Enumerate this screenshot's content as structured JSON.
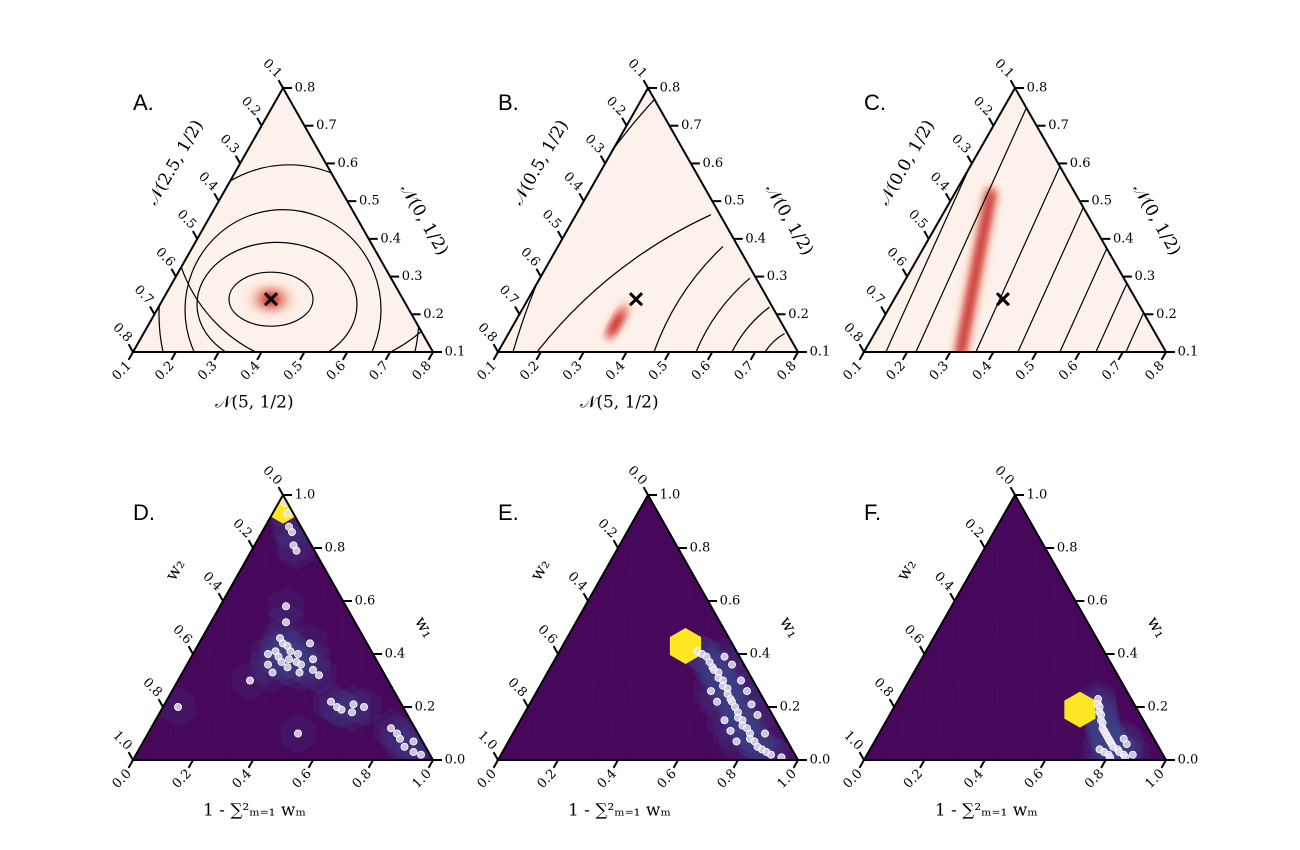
{
  "chart_data": [
    {
      "panel": "A.",
      "type": "heatmap",
      "subtype": "ternary-density",
      "grid": false,
      "axes": {
        "bottom": {
          "label": "𝒩(5, 1/2)",
          "ticks": [
            "0.1",
            "0.2",
            "0.3",
            "0.4",
            "0.5",
            "0.6",
            "0.7",
            "0.8"
          ]
        },
        "left": {
          "label": "𝒩(2.5, 1/2)",
          "ticks": [
            "0.1",
            "0.2",
            "0.3",
            "0.4",
            "0.5",
            "0.6",
            "0.7",
            "0.8"
          ]
        },
        "right": {
          "label": "𝒩(0, 1/2)",
          "ticks": [
            "0.1",
            "0.2",
            "0.3",
            "0.4",
            "0.5",
            "0.6",
            "0.7",
            "0.8"
          ]
        }
      },
      "marker": {
        "symbol": "×",
        "bottom": 0.36,
        "left": 0.44,
        "right": 0.2
      },
      "density_center": {
        "bottom": 0.36,
        "left": 0.44,
        "right": 0.2
      },
      "density_shape": "compact-blob",
      "contour_levels": 5
    },
    {
      "panel": "B.",
      "type": "heatmap",
      "subtype": "ternary-density",
      "grid": false,
      "axes": {
        "bottom": {
          "label": "𝒩(5, 1/2)",
          "ticks": [
            "0.1",
            "0.2",
            "0.3",
            "0.4",
            "0.5",
            "0.6",
            "0.7",
            "0.8"
          ]
        },
        "left": {
          "label": "𝒩(0.5, 1/2)",
          "ticks": [
            "0.1",
            "0.2",
            "0.3",
            "0.4",
            "0.5",
            "0.6",
            "0.7",
            "0.8"
          ]
        },
        "right": {
          "label": "𝒩(0, 1/2)",
          "ticks": [
            "0.1",
            "0.2",
            "0.3",
            "0.4",
            "0.5",
            "0.6",
            "0.7",
            "0.8"
          ]
        }
      },
      "marker": {
        "symbol": "×",
        "bottom": 0.36,
        "left": 0.44,
        "right": 0.2
      },
      "density_center": {
        "bottom": 0.34,
        "left": 0.54,
        "right": 0.12
      },
      "density_shape": "short-ridge",
      "contour_levels": 6
    },
    {
      "panel": "C.",
      "type": "heatmap",
      "subtype": "ternary-density",
      "grid": false,
      "axes": {
        "bottom": {
          "label": "",
          "ticks": [
            "0.1",
            "0.2",
            "0.3",
            "0.4",
            "0.5",
            "0.6",
            "0.7",
            "0.8"
          ]
        },
        "left": {
          "label": "𝒩(0.0, 1/2)",
          "ticks": [
            "0.1",
            "0.2",
            "0.3",
            "0.4",
            "0.5",
            "0.6",
            "0.7",
            "0.8"
          ]
        },
        "right": {
          "label": "𝒩(0, 1/2)",
          "ticks": [
            "0.1",
            "0.2",
            "0.3",
            "0.4",
            "0.5",
            "0.6",
            "0.7",
            "0.8"
          ]
        }
      },
      "marker": {
        "symbol": "×",
        "bottom": 0.36,
        "left": 0.44,
        "right": 0.2
      },
      "density_shape": "long-ridge",
      "ridge_from": {
        "bottom": 0.32,
        "left": 0.68,
        "right": 0.0
      },
      "ridge_to": {
        "bottom": 0.12,
        "left": 0.28,
        "right": 0.6
      },
      "contour_levels": 8
    },
    {
      "panel": "D.",
      "type": "scatter",
      "subtype": "ternary-hexbin",
      "grid": false,
      "background_color": "#440154",
      "highlight_color": "#fde725",
      "axes": {
        "bottom": {
          "label": "1 - ∑²ₘ₌₁ wₘ",
          "ticks": [
            "0.0",
            "0.2",
            "0.4",
            "0.6",
            "0.8",
            "1.0"
          ]
        },
        "left": {
          "label": "w₂",
          "ticks": [
            "0.0",
            "0.2",
            "0.4",
            "0.6",
            "0.8",
            "1.0"
          ]
        },
        "right": {
          "label": "w₁",
          "ticks": [
            "0.0",
            "0.2",
            "0.4",
            "0.6",
            "0.8",
            "1.0"
          ]
        }
      },
      "hexbin_highlights": [
        {
          "bottom": 0.02,
          "right": 0.96,
          "level": 1.0
        }
      ],
      "points": [
        {
          "bottom": 0.02,
          "right": 0.97
        },
        {
          "bottom": 0.05,
          "right": 0.93
        },
        {
          "bottom": 0.08,
          "right": 0.88
        },
        {
          "bottom": 0.1,
          "right": 0.86
        },
        {
          "bottom": 0.13,
          "right": 0.81
        },
        {
          "bottom": 0.15,
          "right": 0.79
        },
        {
          "bottom": 0.22,
          "right": 0.58
        },
        {
          "bottom": 0.25,
          "right": 0.52
        },
        {
          "bottom": 0.26,
          "right": 0.46
        },
        {
          "bottom": 0.27,
          "right": 0.41
        },
        {
          "bottom": 0.28,
          "right": 0.44
        },
        {
          "bottom": 0.29,
          "right": 0.39
        },
        {
          "bottom": 0.3,
          "right": 0.43
        },
        {
          "bottom": 0.31,
          "right": 0.37
        },
        {
          "bottom": 0.32,
          "right": 0.41
        },
        {
          "bottom": 0.33,
          "right": 0.38
        },
        {
          "bottom": 0.34,
          "right": 0.35
        },
        {
          "bottom": 0.35,
          "right": 0.4
        },
        {
          "bottom": 0.36,
          "right": 0.37
        },
        {
          "bottom": 0.38,
          "right": 0.36
        },
        {
          "bottom": 0.39,
          "right": 0.33
        },
        {
          "bottom": 0.41,
          "right": 0.38
        },
        {
          "bottom": 0.43,
          "right": 0.34
        },
        {
          "bottom": 0.3,
          "right": 0.33
        },
        {
          "bottom": 0.27,
          "right": 0.36
        },
        {
          "bottom": 0.25,
          "right": 0.4
        },
        {
          "bottom": 0.37,
          "right": 0.44
        },
        {
          "bottom": 0.24,
          "right": 0.3
        },
        {
          "bottom": 0.46,
          "right": 0.32
        },
        {
          "bottom": 0.05,
          "right": 0.2
        },
        {
          "bottom": 0.55,
          "right": 0.22
        },
        {
          "bottom": 0.58,
          "right": 0.2
        },
        {
          "bottom": 0.6,
          "right": 0.19
        },
        {
          "bottom": 0.63,
          "right": 0.21
        },
        {
          "bottom": 0.64,
          "right": 0.18
        },
        {
          "bottom": 0.67,
          "right": 0.2
        },
        {
          "bottom": 0.8,
          "right": 0.12
        },
        {
          "bottom": 0.83,
          "right": 0.1
        },
        {
          "bottom": 0.85,
          "right": 0.08
        },
        {
          "bottom": 0.88,
          "right": 0.05
        },
        {
          "bottom": 0.9,
          "right": 0.07
        },
        {
          "bottom": 0.92,
          "right": 0.03
        },
        {
          "bottom": 0.95,
          "right": 0.02
        },
        {
          "bottom": 0.5,
          "right": 0.1
        }
      ]
    },
    {
      "panel": "E.",
      "type": "scatter",
      "subtype": "ternary-hexbin",
      "grid": false,
      "background_color": "#440154",
      "highlight_color": "#fde725",
      "axes": {
        "bottom": {
          "label": "1 - ∑²ₘ₌₁ wₘ",
          "ticks": [
            "0.0",
            "0.2",
            "0.4",
            "0.6",
            "0.8",
            "1.0"
          ]
        },
        "left": {
          "label": "w₂",
          "ticks": [
            "0.0",
            "0.2",
            "0.4",
            "0.6",
            "0.8",
            "1.0"
          ]
        },
        "right": {
          "label": "w₁",
          "ticks": [
            "0.0",
            "0.2",
            "0.4",
            "0.6",
            "0.8",
            "1.0"
          ]
        }
      },
      "hexbin_highlights": [
        {
          "bottom": 0.41,
          "right": 0.43,
          "level": 1.0
        }
      ],
      "points": [
        {
          "bottom": 0.46,
          "right": 0.41
        },
        {
          "bottom": 0.48,
          "right": 0.4
        },
        {
          "bottom": 0.5,
          "right": 0.39
        },
        {
          "bottom": 0.52,
          "right": 0.37
        },
        {
          "bottom": 0.54,
          "right": 0.35
        },
        {
          "bottom": 0.55,
          "right": 0.34
        },
        {
          "bottom": 0.57,
          "right": 0.33
        },
        {
          "bottom": 0.58,
          "right": 0.31
        },
        {
          "bottom": 0.6,
          "right": 0.3
        },
        {
          "bottom": 0.61,
          "right": 0.28
        },
        {
          "bottom": 0.63,
          "right": 0.27
        },
        {
          "bottom": 0.64,
          "right": 0.25
        },
        {
          "bottom": 0.66,
          "right": 0.23
        },
        {
          "bottom": 0.67,
          "right": 0.22
        },
        {
          "bottom": 0.69,
          "right": 0.2
        },
        {
          "bottom": 0.71,
          "right": 0.18
        },
        {
          "bottom": 0.72,
          "right": 0.16
        },
        {
          "bottom": 0.74,
          "right": 0.15
        },
        {
          "bottom": 0.75,
          "right": 0.13
        },
        {
          "bottom": 0.77,
          "right": 0.12
        },
        {
          "bottom": 0.79,
          "right": 0.1
        },
        {
          "bottom": 0.8,
          "right": 0.08
        },
        {
          "bottom": 0.82,
          "right": 0.07
        },
        {
          "bottom": 0.84,
          "right": 0.05
        },
        {
          "bottom": 0.86,
          "right": 0.04
        },
        {
          "bottom": 0.88,
          "right": 0.03
        },
        {
          "bottom": 0.9,
          "right": 0.02
        },
        {
          "bottom": 0.94,
          "right": 0.01
        },
        {
          "bottom": 0.56,
          "right": 0.39
        },
        {
          "bottom": 0.6,
          "right": 0.36
        },
        {
          "bottom": 0.66,
          "right": 0.3
        },
        {
          "bottom": 0.7,
          "right": 0.26
        },
        {
          "bottom": 0.74,
          "right": 0.21
        },
        {
          "bottom": 0.78,
          "right": 0.17
        },
        {
          "bottom": 0.62,
          "right": 0.22
        },
        {
          "bottom": 0.68,
          "right": 0.15
        },
        {
          "bottom": 0.72,
          "right": 0.11
        },
        {
          "bottom": 0.76,
          "right": 0.07
        },
        {
          "bottom": 0.84,
          "right": 0.1
        },
        {
          "bottom": 0.58,
          "right": 0.26
        }
      ]
    },
    {
      "panel": "F.",
      "type": "scatter",
      "subtype": "ternary-hexbin",
      "grid": false,
      "background_color": "#440154",
      "highlight_color": "#fde725",
      "axes": {
        "bottom": {
          "label": "1 - ∑²ₘ₌₁ wₘ",
          "ticks": [
            "0.0",
            "0.2",
            "0.4",
            "0.6",
            "0.8",
            "1.0"
          ]
        },
        "left": {
          "label": "w₂",
          "ticks": [
            "0.0",
            "0.2",
            "0.4",
            "0.6",
            "0.8",
            "1.0"
          ]
        },
        "right": {
          "label": "w₁",
          "ticks": [
            "0.0",
            "0.2",
            "0.4",
            "0.6",
            "0.8",
            "1.0"
          ]
        }
      },
      "hexbin_highlights": [
        {
          "bottom": 0.62,
          "right": 0.19,
          "level": 1.0
        }
      ],
      "points": [
        {
          "bottom": 0.66,
          "right": 0.23
        },
        {
          "bottom": 0.67,
          "right": 0.21
        },
        {
          "bottom": 0.68,
          "right": 0.2
        },
        {
          "bottom": 0.69,
          "right": 0.18
        },
        {
          "bottom": 0.7,
          "right": 0.17
        },
        {
          "bottom": 0.71,
          "right": 0.15
        },
        {
          "bottom": 0.72,
          "right": 0.14
        },
        {
          "bottom": 0.73,
          "right": 0.12
        },
        {
          "bottom": 0.74,
          "right": 0.11
        },
        {
          "bottom": 0.75,
          "right": 0.1
        },
        {
          "bottom": 0.76,
          "right": 0.09
        },
        {
          "bottom": 0.77,
          "right": 0.08
        },
        {
          "bottom": 0.78,
          "right": 0.07
        },
        {
          "bottom": 0.79,
          "right": 0.06
        },
        {
          "bottom": 0.8,
          "right": 0.05
        },
        {
          "bottom": 0.82,
          "right": 0.04
        },
        {
          "bottom": 0.83,
          "right": 0.03
        },
        {
          "bottom": 0.85,
          "right": 0.02
        },
        {
          "bottom": 0.86,
          "right": 0.01
        },
        {
          "bottom": 0.78,
          "right": 0.03
        },
        {
          "bottom": 0.8,
          "right": 0.02
        },
        {
          "bottom": 0.82,
          "right": 0.08
        },
        {
          "bottom": 0.84,
          "right": 0.06
        },
        {
          "bottom": 0.76,
          "right": 0.04
        },
        {
          "bottom": 0.81,
          "right": 0.01
        },
        {
          "bottom": 0.88,
          "right": 0.02
        }
      ]
    }
  ]
}
